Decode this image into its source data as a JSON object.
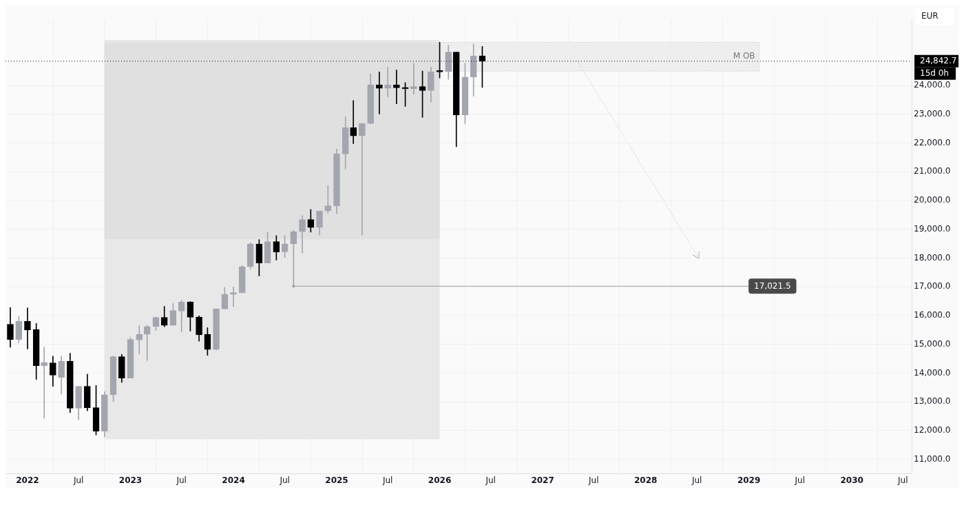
{
  "chart_data": {
    "type": "candlestick",
    "x": [
      "2021-11",
      "2021-12",
      "2022-01",
      "2022-02",
      "2022-03",
      "2022-04",
      "2022-05",
      "2022-06",
      "2022-07",
      "2022-08",
      "2022-09",
      "2022-10",
      "2022-11",
      "2022-12",
      "2023-01",
      "2023-02",
      "2023-03",
      "2023-04",
      "2023-05",
      "2023-06",
      "2023-07",
      "2023-08",
      "2023-09",
      "2023-10",
      "2023-11",
      "2023-12",
      "2024-01",
      "2024-02",
      "2024-03",
      "2024-04",
      "2024-05",
      "2024-06",
      "2024-07",
      "2024-08",
      "2024-09",
      "2024-10",
      "2024-11",
      "2024-12",
      "2025-01",
      "2025-02",
      "2025-03",
      "2025-04",
      "2025-05",
      "2025-06",
      "2025-07",
      "2025-08",
      "2025-09",
      "2025-10",
      "2025-11",
      "2025-12",
      "2026-01",
      "2026-02",
      "2026-03",
      "2026-04",
      "2026-05",
      "2026-06"
    ],
    "ohlc": [
      [
        15700,
        16280,
        14900,
        15170
      ],
      [
        15170,
        15970,
        15060,
        15800
      ],
      [
        15800,
        16270,
        14840,
        15500
      ],
      [
        15510,
        15730,
        13780,
        14260
      ],
      [
        14260,
        14900,
        12430,
        14370
      ],
      [
        14360,
        14590,
        13540,
        13930
      ],
      [
        13850,
        14590,
        13270,
        14410
      ],
      [
        14410,
        14690,
        12630,
        12780
      ],
      [
        12780,
        13540,
        12380,
        13540
      ],
      [
        13540,
        13960,
        12690,
        12790
      ],
      [
        12800,
        13570,
        11850,
        11980
      ],
      [
        11980,
        13350,
        11790,
        13250
      ],
      [
        13250,
        14590,
        13010,
        14570
      ],
      [
        14570,
        14650,
        13680,
        13830
      ],
      [
        13830,
        15240,
        13830,
        15170
      ],
      [
        15150,
        15650,
        14660,
        15350
      ],
      [
        15350,
        15660,
        14440,
        15620
      ],
      [
        15620,
        15950,
        15480,
        15940
      ],
      [
        15940,
        16320,
        15610,
        15660
      ],
      [
        15660,
        16420,
        15660,
        16180
      ],
      [
        16160,
        16530,
        15430,
        16470
      ],
      [
        16470,
        16490,
        15460,
        15940
      ],
      [
        15950,
        15990,
        15110,
        15330
      ],
      [
        15350,
        15580,
        14620,
        14820
      ],
      [
        14820,
        16240,
        14800,
        16230
      ],
      [
        16230,
        16980,
        16230,
        16740
      ],
      [
        16740,
        17000,
        16310,
        16800
      ],
      [
        16800,
        17740,
        16780,
        17700
      ],
      [
        17700,
        18530,
        17620,
        18490
      ],
      [
        18490,
        18640,
        17380,
        17830
      ],
      [
        17830,
        18900,
        17830,
        18570
      ],
      [
        18570,
        18780,
        17930,
        18210
      ],
      [
        18220,
        18780,
        18020,
        18490
      ],
      [
        18490,
        18970,
        17021.5,
        18920
      ],
      [
        18920,
        19480,
        18180,
        19340
      ],
      [
        19340,
        19690,
        18900,
        19060
      ],
      [
        19060,
        19630,
        18800,
        19630
      ],
      [
        19640,
        20520,
        19560,
        19820
      ],
      [
        19810,
        21790,
        19540,
        21620
      ],
      [
        21620,
        22910,
        21100,
        22530
      ],
      [
        22530,
        23480,
        21980,
        22250
      ],
      [
        22250,
        22680,
        18800,
        22680
      ],
      [
        22680,
        24400,
        22660,
        24020
      ],
      [
        24020,
        24470,
        23010,
        23900
      ],
      [
        23900,
        24640,
        23600,
        24020
      ],
      [
        24020,
        24540,
        23360,
        23920
      ],
      [
        23930,
        24100,
        23270,
        23880
      ],
      [
        23880,
        24770,
        23690,
        23960
      ],
      [
        23960,
        24500,
        22890,
        23820
      ],
      [
        23820,
        24640,
        23420,
        24480
      ],
      [
        24500,
        25500,
        24260,
        24470
      ],
      [
        24480,
        25400,
        24210,
        25160
      ],
      [
        25160,
        25160,
        21870,
        22970
      ],
      [
        22970,
        24780,
        22660,
        24290
      ],
      [
        24290,
        25440,
        23630,
        25030
      ],
      [
        25030,
        25360,
        23930,
        24842.7
      ]
    ],
    "colors": [
      "#000000",
      "#a3a6af",
      "#000000",
      "#000000",
      "#a3a6af",
      "#000000",
      "#a3a6af",
      "#000000",
      "#a3a6af",
      "#000000",
      "#000000",
      "#a3a6af",
      "#a3a6af",
      "#000000",
      "#a3a6af",
      "#a3a6af",
      "#a3a6af",
      "#a3a6af",
      "#000000",
      "#a3a6af",
      "#a3a6af",
      "#000000",
      "#000000",
      "#000000",
      "#a3a6af",
      "#a3a6af",
      "#a3a6af",
      "#a3a6af",
      "#a3a6af",
      "#000000",
      "#a3a6af",
      "#000000",
      "#a3a6af",
      "#a3a6af",
      "#a3a6af",
      "#000000",
      "#a3a6af",
      "#a3a6af",
      "#a3a6af",
      "#a3a6af",
      "#000000",
      "#a3a6af",
      "#a3a6af",
      "#000000",
      "#a3a6af",
      "#000000",
      "#000000",
      "#a3a6af",
      "#000000",
      "#a3a6af",
      "#000000",
      "#a3a6af",
      "#000000",
      "#a3a6af",
      "#a3a6af",
      "#000000"
    ],
    "xlim": [
      "2021-10-15",
      "2030-08-01"
    ],
    "xticks": [
      {
        "value": "2022",
        "label": "2022"
      },
      {
        "value": "2022-07",
        "label": "Jul"
      },
      {
        "value": "2023",
        "label": "2023"
      },
      {
        "value": "2023-07",
        "label": "Jul"
      },
      {
        "value": "2024",
        "label": "2024"
      },
      {
        "value": "2024-07",
        "label": "Jul"
      },
      {
        "value": "2025",
        "label": "2025"
      },
      {
        "value": "2025-07",
        "label": "Jul"
      },
      {
        "value": "2026",
        "label": "2026"
      },
      {
        "value": "2026-07",
        "label": "Jul"
      },
      {
        "value": "2027",
        "label": "2027"
      },
      {
        "value": "2027-07",
        "label": "Jul"
      },
      {
        "value": "2028",
        "label": "2028"
      },
      {
        "value": "2028-07",
        "label": "Jul"
      },
      {
        "value": "2029",
        "label": "2029"
      },
      {
        "value": "2029-07",
        "label": "Jul"
      },
      {
        "value": "2030",
        "label": "2030"
      },
      {
        "value": "2030-07",
        "label": "Jul"
      }
    ],
    "ylim": [
      10500,
      26300
    ],
    "yticks": [
      {
        "value": 11000,
        "label": "11,000.0"
      },
      {
        "value": 12000,
        "label": "12,000.0"
      },
      {
        "value": 13000,
        "label": "13,000.0"
      },
      {
        "value": 14000,
        "label": "14,000.0"
      },
      {
        "value": 15000,
        "label": "15,000.0"
      },
      {
        "value": 16000,
        "label": "16,000.0"
      },
      {
        "value": 17000,
        "label": "17,000.0"
      },
      {
        "value": 18000,
        "label": "18,000.0"
      },
      {
        "value": 19000,
        "label": "19,000.0"
      },
      {
        "value": 20000,
        "label": "20,000.0"
      },
      {
        "value": 21000,
        "label": "21,000.0"
      },
      {
        "value": 22000,
        "label": "22,000.0"
      },
      {
        "value": 23000,
        "label": "23,000.0"
      },
      {
        "value": 24000,
        "label": "24,000.0"
      }
    ],
    "grid": true,
    "bands": [
      {
        "axis": "x",
        "from": "2022-10",
        "to": "2026-01",
        "color": "#e8e8e8"
      },
      {
        "axis": "y",
        "from": 18650,
        "to": 25500,
        "color": "#e0e0e0"
      },
      {
        "axis": "y",
        "from": 24500,
        "to": 25500,
        "label": "M OB",
        "color": "#eeeeee"
      }
    ],
    "ref_lines": [
      {
        "axis": "y",
        "value": 24842.7,
        "label": "24,842.7",
        "color": "#000000",
        "line_style": "dotted"
      },
      {
        "axis": "y",
        "value": 17021.5,
        "label": "17,021.5",
        "color": "#9e9e9e",
        "line_style": "solid"
      }
    ],
    "annotations": [
      "EUR",
      "15d 0h"
    ]
  }
}
